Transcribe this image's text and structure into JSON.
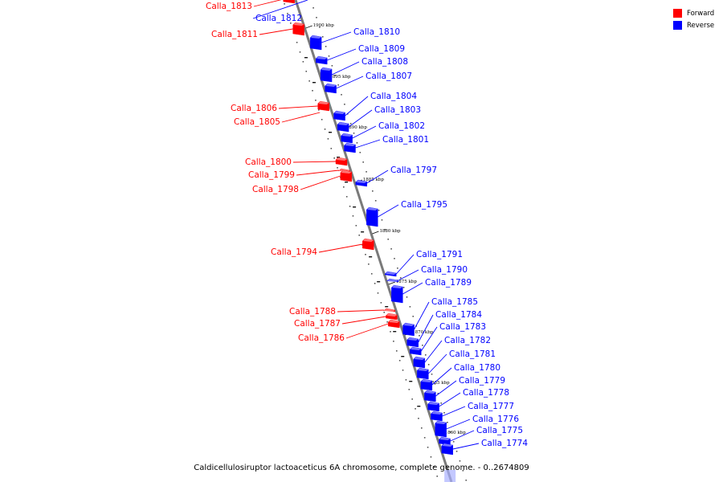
{
  "caption": "Caldicellulosiruptor lactoaceticus 6A chromosome, complete genome. - 0..2674809",
  "legend": [
    {
      "label": "Forward",
      "color": "#ff0000"
    },
    {
      "label": "Reverse",
      "color": "#0000ff"
    }
  ],
  "colors": {
    "forward": "#ff0000",
    "reverse": "#0000ff",
    "backbone": "#808080"
  },
  "coordinate_ticks": [
    "1900 kbp",
    "1895 kbp",
    "1890 kbp",
    "1885 kbp",
    "1880 kbp",
    "1875 kbp",
    "1870 kbp",
    "1865 kbp",
    "1860 kbp"
  ],
  "genes": [
    {
      "name": "Calla_1813",
      "strand": "forward"
    },
    {
      "name": "Calla_1812",
      "strand": "reverse"
    },
    {
      "name": "Calla_1811",
      "strand": "forward"
    },
    {
      "name": "Calla_1810",
      "strand": "reverse"
    },
    {
      "name": "Calla_1809",
      "strand": "reverse"
    },
    {
      "name": "Calla_1808",
      "strand": "reverse"
    },
    {
      "name": "Calla_1807",
      "strand": "reverse"
    },
    {
      "name": "Calla_1806",
      "strand": "forward"
    },
    {
      "name": "Calla_1805",
      "strand": "forward"
    },
    {
      "name": "Calla_1804",
      "strand": "reverse"
    },
    {
      "name": "Calla_1803",
      "strand": "reverse"
    },
    {
      "name": "Calla_1802",
      "strand": "reverse"
    },
    {
      "name": "Calla_1801",
      "strand": "reverse"
    },
    {
      "name": "Calla_1800",
      "strand": "forward"
    },
    {
      "name": "Calla_1799",
      "strand": "forward"
    },
    {
      "name": "Calla_1798",
      "strand": "forward"
    },
    {
      "name": "Calla_1797",
      "strand": "reverse"
    },
    {
      "name": "Calla_1795",
      "strand": "reverse"
    },
    {
      "name": "Calla_1794",
      "strand": "forward"
    },
    {
      "name": "Calla_1791",
      "strand": "reverse"
    },
    {
      "name": "Calla_1790",
      "strand": "reverse"
    },
    {
      "name": "Calla_1789",
      "strand": "reverse"
    },
    {
      "name": "Calla_1788",
      "strand": "forward"
    },
    {
      "name": "Calla_1787",
      "strand": "forward"
    },
    {
      "name": "Calla_1786",
      "strand": "forward"
    },
    {
      "name": "Calla_1785",
      "strand": "reverse"
    },
    {
      "name": "Calla_1784",
      "strand": "reverse"
    },
    {
      "name": "Calla_1783",
      "strand": "reverse"
    },
    {
      "name": "Calla_1782",
      "strand": "reverse"
    },
    {
      "name": "Calla_1781",
      "strand": "reverse"
    },
    {
      "name": "Calla_1780",
      "strand": "reverse"
    },
    {
      "name": "Calla_1779",
      "strand": "reverse"
    },
    {
      "name": "Calla_1778",
      "strand": "reverse"
    },
    {
      "name": "Calla_1777",
      "strand": "reverse"
    },
    {
      "name": "Calla_1776",
      "strand": "reverse"
    },
    {
      "name": "Calla_1775",
      "strand": "reverse"
    },
    {
      "name": "Calla_1774",
      "strand": "reverse"
    }
  ]
}
